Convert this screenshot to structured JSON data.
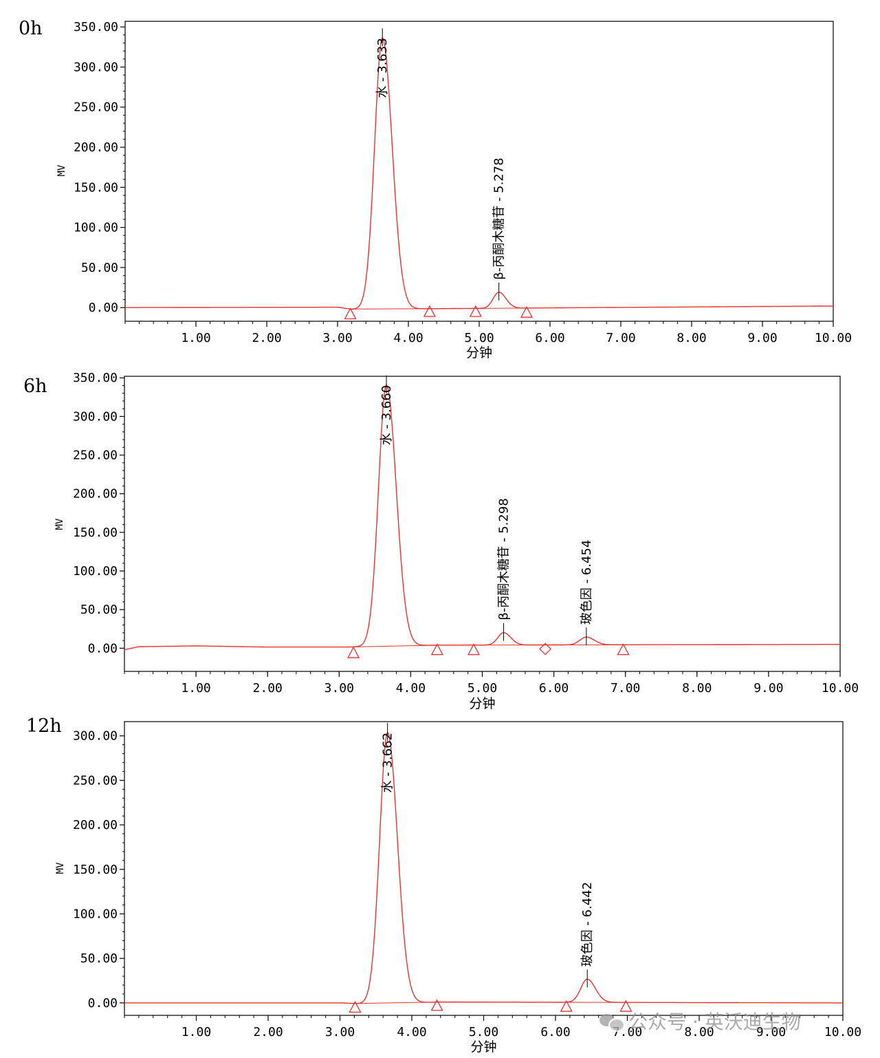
{
  "chart_data": [
    {
      "type": "line",
      "panel_label": "0h",
      "xlabel": "分钟",
      "ylabel": "MV",
      "xlim": [
        0,
        10
      ],
      "ylim": [
        -17,
        357
      ],
      "x_ticks": [
        1,
        2,
        3,
        4,
        5,
        6,
        7,
        8,
        9,
        10
      ],
      "x_tick_labels": [
        "1.00",
        "2.00",
        "3.00",
        "4.00",
        "5.00",
        "6.00",
        "7.00",
        "8.00",
        "9.00",
        "10.00"
      ],
      "y_ticks": [
        0,
        50,
        100,
        150,
        200,
        250,
        300,
        350
      ],
      "y_tick_labels": [
        "0.00",
        "50.00",
        "100.00",
        "150.00",
        "200.00",
        "250.00",
        "300.00",
        "350.00"
      ],
      "series_color": "#e8312f",
      "baseline": [
        [
          0,
          0
        ],
        [
          3.0,
          0.5
        ],
        [
          3.2,
          -2
        ],
        [
          10,
          2
        ]
      ],
      "peaks": [
        {
          "rt": 3.633,
          "height": 338,
          "width": 0.11,
          "label": "水 - 3.633"
        },
        {
          "rt": 5.278,
          "height": 20,
          "width": 0.08,
          "label": "β-丙酮木糖苷 - 5.278"
        }
      ],
      "markers": [
        {
          "x": 3.18,
          "y": -8,
          "shape": "triangle"
        },
        {
          "x": 4.3,
          "y": -5,
          "shape": "triangle"
        },
        {
          "x": 4.95,
          "y": -5,
          "shape": "triangle"
        },
        {
          "x": 5.67,
          "y": -6,
          "shape": "triangle"
        }
      ]
    },
    {
      "type": "line",
      "panel_label": "6h",
      "xlabel": "分钟",
      "ylabel": "MV",
      "xlim": [
        0,
        10
      ],
      "ylim": [
        -30,
        352
      ],
      "x_ticks": [
        1,
        2,
        3,
        4,
        5,
        6,
        7,
        8,
        9,
        10
      ],
      "x_tick_labels": [
        "1.00",
        "2.00",
        "3.00",
        "4.00",
        "5.00",
        "6.00",
        "7.00",
        "8.00",
        "9.00",
        "10.00"
      ],
      "y_ticks": [
        0,
        50,
        100,
        150,
        200,
        250,
        300,
        350
      ],
      "y_tick_labels": [
        "0.00",
        "50.00",
        "100.00",
        "150.00",
        "200.00",
        "250.00",
        "300.00",
        "350.00"
      ],
      "series_color": "#e8312f",
      "baseline": [
        [
          0,
          -2
        ],
        [
          0.2,
          2
        ],
        [
          1.0,
          3
        ],
        [
          2.0,
          1.5
        ],
        [
          3.1,
          1.5
        ],
        [
          3.3,
          2
        ],
        [
          4.4,
          4
        ],
        [
          10,
          5
        ]
      ],
      "peaks": [
        {
          "rt": 3.66,
          "height": 338,
          "width": 0.11,
          "label": "水 - 3.660"
        },
        {
          "rt": 5.298,
          "height": 16,
          "width": 0.08,
          "label": "β-丙酮木糖苷 - 5.298"
        },
        {
          "rt": 6.454,
          "height": 10,
          "width": 0.09,
          "label": "玻色因 - 6.454"
        }
      ],
      "markers": [
        {
          "x": 3.2,
          "y": -6,
          "shape": "triangle"
        },
        {
          "x": 4.37,
          "y": -2,
          "shape": "triangle"
        },
        {
          "x": 4.88,
          "y": -2,
          "shape": "triangle"
        },
        {
          "x": 5.88,
          "y": -1,
          "shape": "diamond"
        },
        {
          "x": 6.97,
          "y": -2,
          "shape": "triangle"
        }
      ]
    },
    {
      "type": "line",
      "panel_label": "12h",
      "xlabel": "分钟",
      "ylabel": "MV",
      "xlim": [
        0,
        10
      ],
      "ylim": [
        -14,
        316
      ],
      "x_ticks": [
        1,
        2,
        3,
        4,
        5,
        6,
        7,
        8,
        9,
        10
      ],
      "x_tick_labels": [
        "1.00",
        "2.00",
        "3.00",
        "4.00",
        "5.00",
        "6.00",
        "7.00",
        "8.00",
        "9.00",
        "10.00"
      ],
      "y_ticks": [
        0,
        50,
        100,
        150,
        200,
        250,
        300
      ],
      "y_tick_labels": [
        "0.00",
        "50.00",
        "100.00",
        "150.00",
        "200.00",
        "250.00",
        "300.00"
      ],
      "series_color": "#e8312f",
      "baseline": [
        [
          0,
          0
        ],
        [
          3.0,
          0
        ],
        [
          3.3,
          -1
        ],
        [
          4.4,
          1
        ],
        [
          10,
          0
        ]
      ],
      "peaks": [
        {
          "rt": 3.662,
          "height": 304,
          "width": 0.11,
          "label": "水 - 3.662"
        },
        {
          "rt": 6.442,
          "height": 26,
          "width": 0.09,
          "label": "玻色因 - 6.442"
        }
      ],
      "markers": [
        {
          "x": 3.21,
          "y": -5,
          "shape": "triangle"
        },
        {
          "x": 4.35,
          "y": -3,
          "shape": "triangle"
        },
        {
          "x": 6.15,
          "y": -4,
          "shape": "triangle"
        },
        {
          "x": 6.98,
          "y": -4,
          "shape": "triangle"
        }
      ]
    }
  ],
  "watermark": {
    "icon": "wechat-icon",
    "text": "公众号 · 英沃迪生物"
  }
}
